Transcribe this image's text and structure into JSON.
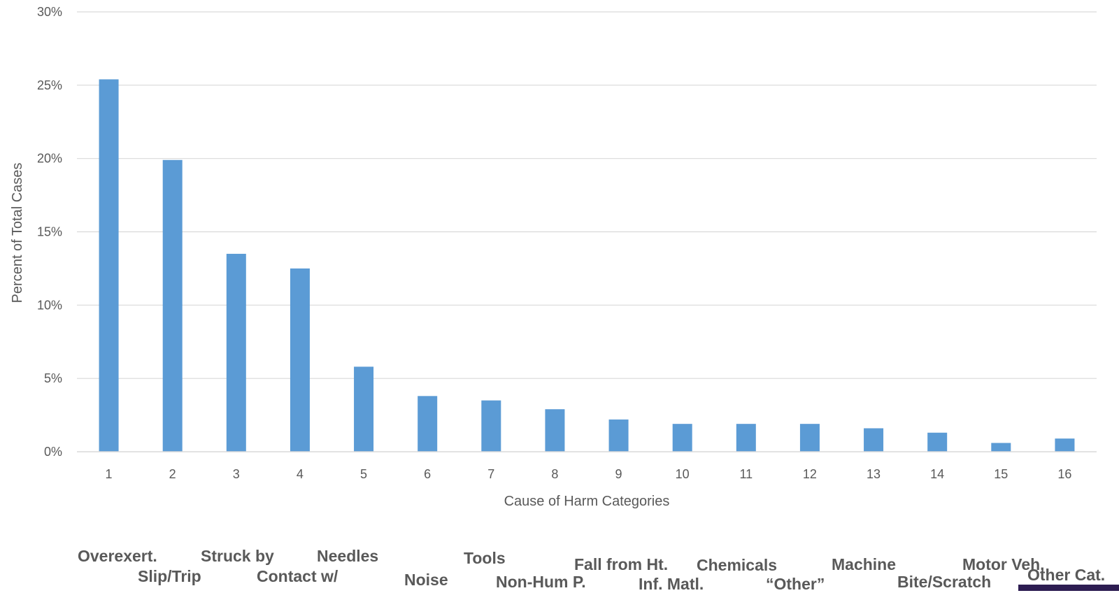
{
  "chart_data": {
    "type": "bar",
    "categories": [
      "1",
      "2",
      "3",
      "4",
      "5",
      "6",
      "7",
      "8",
      "9",
      "10",
      "11",
      "12",
      "13",
      "14",
      "15",
      "16"
    ],
    "values": [
      25.4,
      19.9,
      13.5,
      12.5,
      5.8,
      3.8,
      3.5,
      2.9,
      2.2,
      1.9,
      1.9,
      1.9,
      1.6,
      1.3,
      0.6,
      0.9
    ],
    "xlabel": "Cause of Harm Categories",
    "ylabel": "Percent of Total Cases",
    "ylim": [
      0,
      30
    ],
    "yticks": [
      "0%",
      "5%",
      "10%",
      "15%",
      "20%",
      "25%",
      "30%"
    ],
    "bar_color": "#5b9bd5",
    "grid": true,
    "legend": "none"
  },
  "category_names": [
    "Overexert.",
    "Slip/Trip",
    "Struck by",
    "Contact w/",
    "Needles",
    "Noise",
    "Tools",
    "Non-Hum P.",
    "Fall from Ht.",
    "Inf. Matl.",
    "Chemicals",
    "“Other”",
    "Machine",
    "Bite/Scratch",
    "Motor Veh.",
    "Other Cat."
  ]
}
